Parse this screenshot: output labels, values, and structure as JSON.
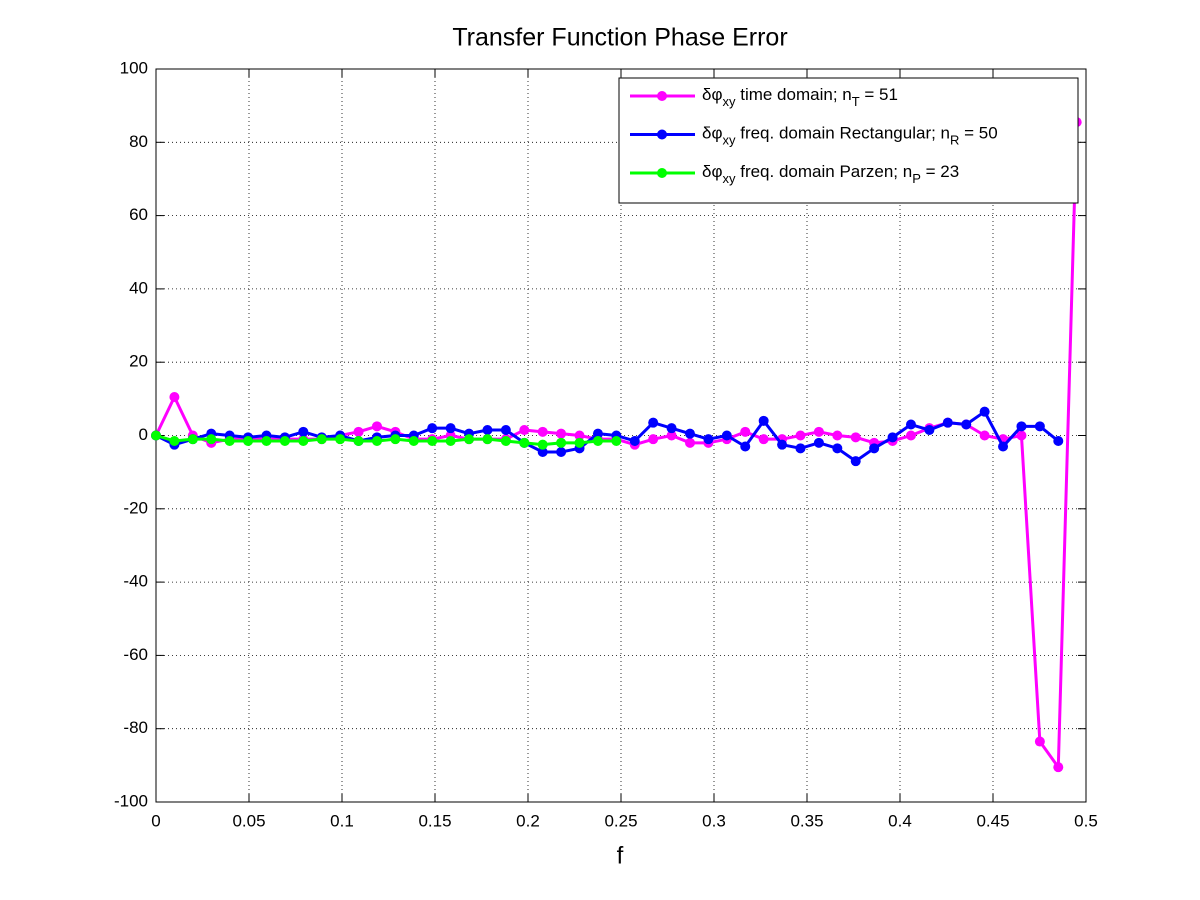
{
  "chart_data": {
    "type": "line",
    "title": "Transfer Function Phase Error",
    "x_label": "f",
    "x": [
      0,
      0.0099,
      0.0198,
      0.0297,
      0.0396,
      0.0495,
      0.0594,
      0.0693,
      0.0792,
      0.0891,
      0.099,
      0.1089,
      0.1188,
      0.1287,
      0.1386,
      0.1485,
      0.1584,
      0.1683,
      0.1782,
      0.1881,
      0.198,
      0.2079,
      0.2178,
      0.2277,
      0.2376,
      0.2475,
      0.2574,
      0.2673,
      0.2772,
      0.2871,
      0.297,
      0.3069,
      0.3168,
      0.3267,
      0.3366,
      0.3465,
      0.3564,
      0.3663,
      0.3762,
      0.3861,
      0.396,
      0.4059,
      0.4158,
      0.4257,
      0.4356,
      0.4455,
      0.4554,
      0.4653,
      0.4752,
      0.4851,
      0.495
    ],
    "series": [
      {
        "name": [
          "δφ",
          "xy",
          " time domain; n",
          "T",
          " = 51"
        ],
        "color": "#ff00ff",
        "values": [
          0,
          10.5,
          0,
          -2,
          -1,
          -1,
          -1,
          -1,
          -1,
          -1,
          0,
          1,
          2.5,
          1,
          -1,
          -1,
          0,
          -1,
          -1,
          -1,
          1.5,
          1,
          0.5,
          0,
          -1,
          -1,
          -2.5,
          -1,
          0,
          -2,
          -2,
          -1,
          1,
          -1,
          -1,
          0,
          1,
          0,
          -0.5,
          -2,
          -1.5,
          0,
          2,
          3.5,
          3,
          0,
          -1,
          0,
          -83.5,
          -90.5,
          85.5
        ]
      },
      {
        "name": [
          "δφ",
          "xy",
          " freq. domain Rectangular; n",
          "R",
          " = 50"
        ],
        "color": "#0000ff",
        "values": [
          0,
          -2.5,
          -1,
          0.5,
          0,
          -0.5,
          0,
          -0.5,
          1,
          -0.5,
          0,
          -1.5,
          -0.5,
          0,
          0,
          2,
          2,
          0.5,
          1.5,
          1.5,
          -2,
          -4.5,
          -4.5,
          -3.5,
          0.5,
          0,
          -1.5,
          3.5,
          2,
          0.5,
          -1,
          0,
          -3,
          4,
          -2.5,
          -3.5,
          -2,
          -3.5,
          -7,
          -3.5,
          -0.5,
          3,
          1.5,
          3.5,
          3,
          6.5,
          -3,
          2.5,
          2.5,
          -1.5,
          null
        ]
      },
      {
        "name": [
          "δφ",
          "xy",
          " freq. domain Parzen; n",
          "P",
          " = 23"
        ],
        "color": "#00ff00",
        "values": [
          0,
          -1.5,
          -1,
          -1,
          -1.5,
          -1.5,
          -1.5,
          -1.5,
          -1.5,
          -1,
          -1,
          -1.5,
          -1.5,
          -1,
          -1.5,
          -1.5,
          -1.5,
          -1,
          -1,
          -1.5,
          -2,
          -2.5,
          -2,
          -2,
          -1.5,
          -1.5,
          null,
          null,
          null,
          null,
          null,
          null,
          null,
          null,
          null,
          null,
          null,
          null,
          null,
          null,
          null,
          null,
          null,
          null,
          null,
          null,
          null,
          null,
          null,
          null,
          null
        ]
      }
    ],
    "xlim": [
      0,
      0.5
    ],
    "xticks": [
      0,
      0.05,
      0.1,
      0.15,
      0.2,
      0.25,
      0.3,
      0.35,
      0.4,
      0.45,
      0.5
    ],
    "ylim": [
      -100,
      100
    ],
    "yticks": [
      -100,
      -80,
      -60,
      -40,
      -20,
      0,
      20,
      40,
      60,
      80,
      100
    ],
    "grid": true,
    "legend": "upper-right"
  }
}
